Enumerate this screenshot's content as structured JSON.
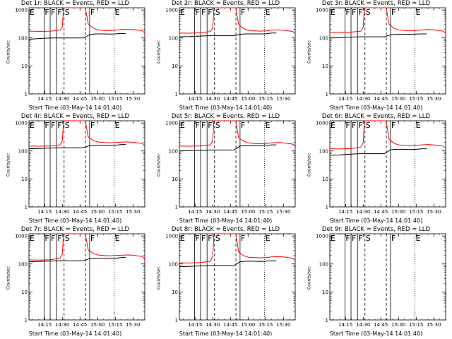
{
  "chart_data": {
    "type": "line",
    "layout": {
      "rows": 3,
      "cols": 3
    },
    "xlabel": "Start Time (03-May-14 14:01:40)",
    "ylabel": "Counts/sec",
    "y_scale": "log",
    "ylim": [
      1,
      1200
    ],
    "xlim": [
      "14:01:40",
      "15:40:00"
    ],
    "x_ticks": [
      "14:15",
      "14:30",
      "14:45",
      "15:00",
      "15:15",
      "15:30"
    ],
    "y_ticks": [
      "1",
      "10",
      "100",
      "1000"
    ],
    "series_colors": {
      "events": "#000000",
      "lld": "#ff0000"
    },
    "event_markers": [
      {
        "label": "E",
        "time": "14:01:40",
        "style": "dotted"
      },
      {
        "label": "F",
        "time": "14:14:30",
        "style": "solid"
      },
      {
        "label": "F",
        "time": "14:19:40",
        "style": "solid"
      },
      {
        "label": "F",
        "time": "14:25:10",
        "style": "solid"
      },
      {
        "label": "S",
        "time": "14:31:30",
        "style": "dashed"
      },
      {
        "label": "",
        "time": "14:49:40",
        "style": "dashed"
      },
      {
        "label": "F",
        "time": "14:53:10",
        "style": "solid"
      },
      {
        "label": "E",
        "time": "15:14:00",
        "style": "dotted"
      },
      {
        "label": "",
        "time": "15:40:00",
        "style": "dotted"
      }
    ],
    "panels": [
      {
        "title": "Det 1r: BLACK = Events, RED = LLD",
        "series": [
          {
            "name": "BLACK",
            "x": [
              "14:01:40",
              "14:10:00",
              "14:15:00",
              "14:22:00",
              "14:27:00",
              "14:28:30",
              "14:32:00",
              "14:40:00",
              "14:48:00",
              "14:53:10",
              "14:58:00",
              "15:05:00",
              "15:10:00",
              "15:15:00",
              "15:20:00",
              "15:24:00"
            ],
            "y": [
              90,
              95,
              98,
              100,
              100,
              100,
              100,
              100,
              100,
              130,
              140,
              140,
              138,
              140,
              145,
              145
            ]
          },
          {
            "name": "RED",
            "x": [
              "14:01:40",
              "14:10:00",
              "14:20:00",
              "14:28:00",
              "14:30:00",
              "14:31:00",
              "14:45:00",
              "14:49:30",
              "14:52:00",
              "14:56:00",
              "15:00:00",
              "15:05:00",
              "15:10:00",
              "15:15:00",
              "15:20:00",
              "15:25:00",
              "15:30:00",
              "15:38:00",
              "15:40:00"
            ],
            "y": [
              175,
              172,
              175,
              190,
              250,
              1200,
              1200,
              1200,
              320,
              230,
              195,
              185,
              180,
              190,
              200,
              200,
              200,
              180,
              150
            ]
          }
        ]
      },
      {
        "title": "Det 2r: BLACK = Events, RED = LLD",
        "series": [
          {
            "name": "BLACK",
            "x": [
              "14:01:40",
              "14:10:00",
              "14:15:00",
              "14:22:00",
              "14:27:00",
              "14:28:30",
              "14:32:00",
              "14:40:00",
              "14:48:00",
              "14:53:10",
              "14:58:00",
              "15:05:00",
              "15:10:00",
              "15:15:00",
              "15:20:00",
              "15:24:00"
            ],
            "y": [
              110,
              112,
              115,
              118,
              120,
              120,
              120,
              120,
              120,
              135,
              140,
              140,
              140,
              140,
              150,
              150
            ]
          },
          {
            "name": "RED",
            "x": [
              "14:01:40",
              "14:10:00",
              "14:20:00",
              "14:28:00",
              "14:30:00",
              "14:31:00",
              "14:45:00",
              "14:49:30",
              "14:52:00",
              "14:56:00",
              "15:00:00",
              "15:05:00",
              "15:10:00",
              "15:15:00",
              "15:20:00",
              "15:25:00",
              "15:30:00",
              "15:38:00",
              "15:40:00"
            ],
            "y": [
              150,
              148,
              155,
              170,
              230,
              1200,
              1200,
              1200,
              300,
              220,
              190,
              180,
              175,
              180,
              190,
              195,
              190,
              170,
              140
            ]
          }
        ]
      },
      {
        "title": "Det 3r: BLACK = Events, RED = LLD",
        "series": [
          {
            "name": "BLACK",
            "x": [
              "14:01:40",
              "14:10:00",
              "14:15:00",
              "14:22:00",
              "14:27:00",
              "14:28:30",
              "14:32:00",
              "14:40:00",
              "14:48:00",
              "14:53:10",
              "14:58:00",
              "15:05:00",
              "15:10:00",
              "15:15:00",
              "15:20:00",
              "15:24:00"
            ],
            "y": [
              100,
              102,
              105,
              108,
              110,
              110,
              110,
              110,
              110,
              130,
              135,
              135,
              135,
              138,
              140,
              140
            ]
          },
          {
            "name": "RED",
            "x": [
              "14:01:40",
              "14:10:00",
              "14:20:00",
              "14:28:00",
              "14:30:00",
              "14:31:00",
              "14:45:00",
              "14:49:30",
              "14:52:00",
              "14:56:00",
              "15:00:00",
              "15:05:00",
              "15:10:00",
              "15:15:00",
              "15:20:00",
              "15:25:00",
              "15:30:00",
              "15:38:00",
              "15:40:00"
            ],
            "y": [
              160,
              158,
              162,
              175,
              240,
              1200,
              1200,
              1200,
              310,
              225,
              195,
              185,
              178,
              185,
              195,
              200,
              195,
              175,
              145
            ]
          }
        ]
      },
      {
        "title": "Det 4r: BLACK = Events, RED = LLD",
        "series": [
          {
            "name": "BLACK",
            "x": [
              "14:01:40",
              "14:10:00",
              "14:15:00",
              "14:22:00",
              "14:27:00",
              "14:28:30",
              "14:32:00",
              "14:40:00",
              "14:48:00",
              "14:53:10",
              "14:58:00",
              "15:05:00",
              "15:10:00",
              "15:15:00",
              "15:20:00",
              "15:24:00"
            ],
            "y": [
              120,
              122,
              125,
              128,
              130,
              130,
              130,
              130,
              130,
              155,
              160,
              160,
              158,
              160,
              170,
              170
            ]
          },
          {
            "name": "RED",
            "x": [
              "14:01:40",
              "14:10:00",
              "14:20:00",
              "14:28:00",
              "14:30:00",
              "14:31:00",
              "14:45:00",
              "14:49:30",
              "14:52:00",
              "14:56:00",
              "15:00:00",
              "15:05:00",
              "15:10:00",
              "15:15:00",
              "15:20:00",
              "15:25:00",
              "15:30:00",
              "15:38:00",
              "15:40:00"
            ],
            "y": [
              150,
              148,
              152,
              165,
              230,
              1200,
              1200,
              1200,
              320,
              240,
              210,
              200,
              195,
              200,
              205,
              210,
              205,
              185,
              150
            ]
          }
        ]
      },
      {
        "title": "Det 5r: BLACK = Events, RED = LLD",
        "series": [
          {
            "name": "BLACK",
            "x": [
              "14:01:40",
              "14:10:00",
              "14:15:00",
              "14:22:00",
              "14:27:00",
              "14:28:30",
              "14:32:00",
              "14:40:00",
              "14:48:00",
              "14:53:10",
              "14:58:00",
              "15:05:00",
              "15:10:00",
              "15:15:00",
              "15:20:00",
              "15:24:00"
            ],
            "y": [
              100,
              102,
              104,
              106,
              108,
              108,
              108,
              108,
              108,
              150,
              155,
              155,
              155,
              158,
              165,
              165
            ]
          },
          {
            "name": "RED",
            "x": [
              "14:01:40",
              "14:10:00",
              "14:20:00",
              "14:28:00",
              "14:30:00",
              "14:31:00",
              "14:45:00",
              "14:49:30",
              "14:52:00",
              "14:56:00",
              "15:00:00",
              "15:05:00",
              "15:10:00",
              "15:15:00",
              "15:20:00",
              "15:25:00",
              "15:30:00",
              "15:38:00",
              "15:40:00"
            ],
            "y": [
              150,
              148,
              152,
              165,
              230,
              1200,
              1200,
              1200,
              300,
              225,
              195,
              185,
              180,
              185,
              195,
              200,
              195,
              175,
              145
            ]
          }
        ]
      },
      {
        "title": "Det 6r: BLACK = Events, RED = LLD",
        "series": [
          {
            "name": "BLACK",
            "x": [
              "14:01:40",
              "14:10:00",
              "14:15:00",
              "14:22:00",
              "14:27:00",
              "14:28:30",
              "14:32:00",
              "14:40:00",
              "14:48:00",
              "14:53:10",
              "14:58:00",
              "15:05:00",
              "15:10:00",
              "15:15:00",
              "15:20:00",
              "15:24:00"
            ],
            "y": [
              70,
              72,
              75,
              78,
              80,
              80,
              80,
              80,
              80,
              110,
              115,
              115,
              112,
              115,
              120,
              120
            ]
          },
          {
            "name": "RED",
            "x": [
              "14:01:40",
              "14:10:00",
              "14:20:00",
              "14:28:00",
              "14:30:00",
              "14:31:00",
              "14:45:00",
              "14:49:30",
              "14:52:00",
              "14:56:00",
              "15:00:00",
              "15:05:00",
              "15:10:00",
              "15:15:00",
              "15:20:00",
              "15:25:00",
              "15:30:00",
              "15:38:00",
              "15:40:00"
            ],
            "y": [
              120,
              118,
              122,
              135,
              200,
              1200,
              1200,
              1200,
              260,
              190,
              165,
              160,
              155,
              160,
              165,
              170,
              165,
              150,
              125
            ]
          }
        ]
      },
      {
        "title": "Det 7r: BLACK = Events, RED = LLD",
        "series": [
          {
            "name": "BLACK",
            "x": [
              "14:01:40",
              "14:10:00",
              "14:15:00",
              "14:22:00",
              "14:27:00",
              "14:28:30",
              "14:32:00",
              "14:40:00",
              "14:48:00",
              "14:53:10",
              "14:58:00",
              "15:05:00",
              "15:10:00",
              "15:15:00",
              "15:20:00",
              "15:24:00"
            ],
            "y": [
              120,
              122,
              125,
              128,
              130,
              130,
              130,
              130,
              130,
              155,
              160,
              160,
              158,
              160,
              170,
              170
            ]
          },
          {
            "name": "RED",
            "x": [
              "14:01:40",
              "14:10:00",
              "14:20:00",
              "14:28:00",
              "14:30:00",
              "14:31:00",
              "14:45:00",
              "14:49:30",
              "14:52:00",
              "14:56:00",
              "15:00:00",
              "15:05:00",
              "15:10:00",
              "15:15:00",
              "15:20:00",
              "15:25:00",
              "15:30:00",
              "15:38:00",
              "15:40:00"
            ],
            "y": [
              140,
              138,
              142,
              160,
              230,
              1200,
              1200,
              1200,
              320,
              240,
              210,
              200,
              195,
              200,
              205,
              210,
              205,
              185,
              150
            ]
          }
        ]
      },
      {
        "title": "Det 8r: BLACK = Events, RED = LLD",
        "series": [
          {
            "name": "BLACK",
            "x": [
              "14:01:40",
              "14:10:00",
              "14:15:00",
              "14:22:00",
              "14:27:00",
              "14:28:30",
              "14:32:00",
              "14:40:00",
              "14:48:00",
              "14:53:10",
              "14:58:00",
              "15:05:00",
              "15:10:00",
              "15:15:00",
              "15:20:00",
              "15:24:00"
            ],
            "y": [
              80,
              82,
              84,
              86,
              88,
              88,
              88,
              88,
              88,
              120,
              125,
              125,
              122,
              125,
              130,
              130
            ]
          },
          {
            "name": "RED",
            "x": [
              "14:01:40",
              "14:10:00",
              "14:20:00",
              "14:28:00",
              "14:30:00",
              "14:31:00",
              "14:45:00",
              "14:49:30",
              "14:52:00",
              "14:56:00",
              "15:00:00",
              "15:05:00",
              "15:10:00",
              "15:15:00",
              "15:20:00",
              "15:25:00",
              "15:30:00",
              "15:38:00",
              "15:40:00"
            ],
            "y": [
              110,
              108,
              112,
              125,
              190,
              1200,
              1200,
              1200,
              270,
              200,
              175,
              170,
              165,
              170,
              178,
              182,
              178,
              160,
              130
            ]
          }
        ]
      },
      {
        "title": "Det 9r: BLACK = Events, RED = LLD",
        "series": []
      }
    ]
  }
}
